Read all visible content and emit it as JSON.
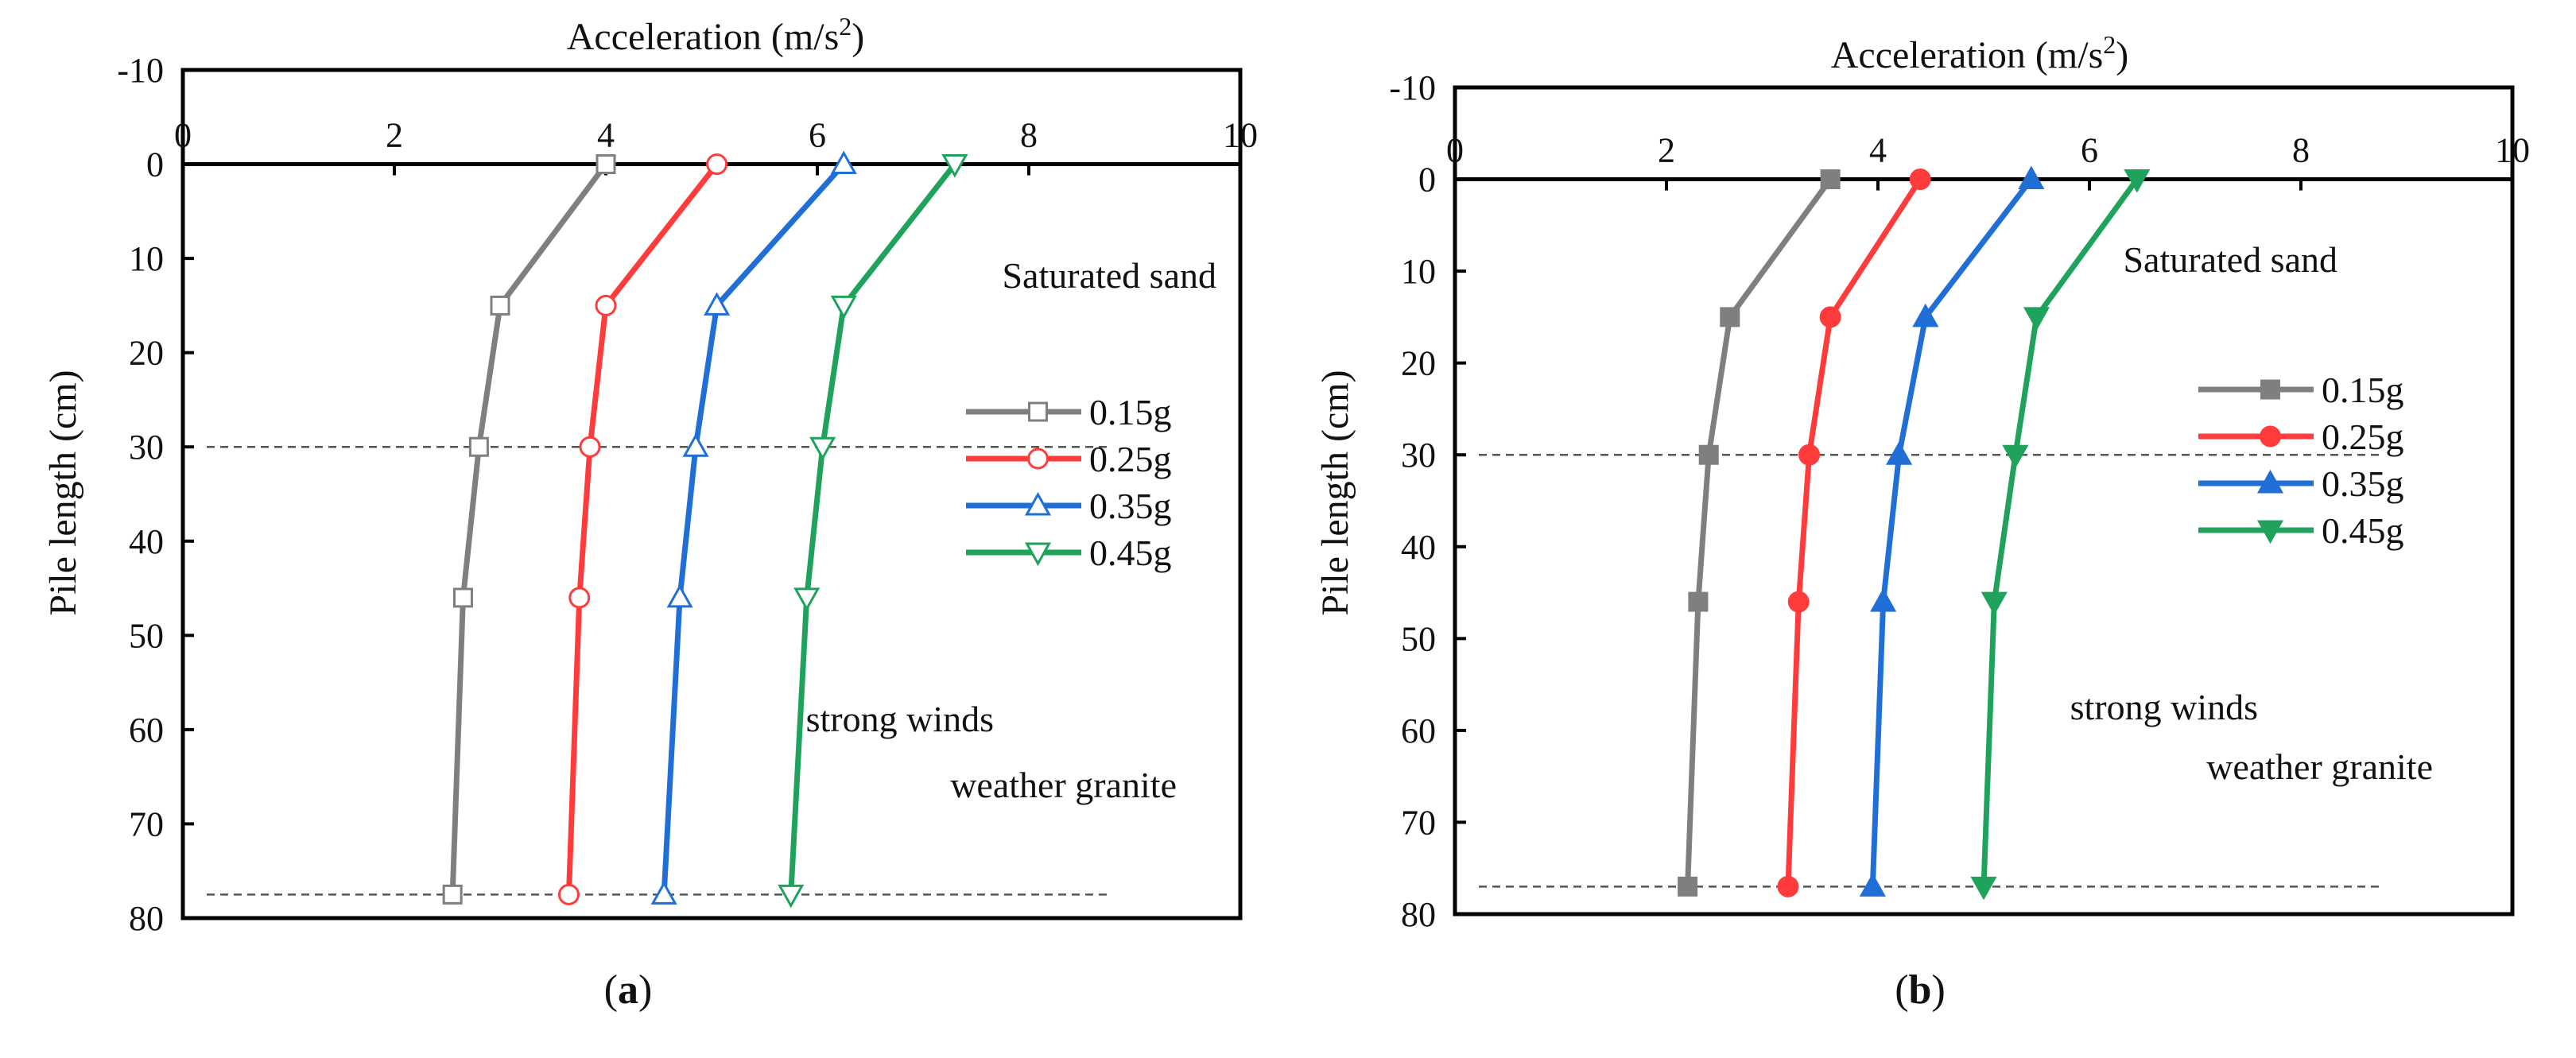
{
  "chart_data": [
    {
      "type": "line",
      "panel": "(a)",
      "xlabel_prefix": "Acceleration (m/s",
      "xlabel_sup": "2",
      "xlabel_suffix": ")",
      "ylabel": "Pile length (cm)",
      "xlim": [
        0,
        10
      ],
      "ylim": [
        -10,
        80
      ],
      "xticks": [
        0,
        2,
        4,
        6,
        8,
        10
      ],
      "yticks": [
        -10,
        0,
        10,
        20,
        30,
        40,
        50,
        60,
        70,
        80
      ],
      "xtick_labels": [
        "0",
        "2",
        "4",
        "6",
        "8",
        "10"
      ],
      "ytick_labels": [
        "-10",
        "0",
        "10",
        "20",
        "30",
        "40",
        "50",
        "60",
        "70",
        "80"
      ],
      "reference_lines": [
        30,
        77.5
      ],
      "annotations": {
        "top_layer": "Saturated sand",
        "bottom_layer_1": "strong winds",
        "bottom_layer_2": "weather granite"
      },
      "marker_fill": "hollow",
      "y": [
        0,
        15,
        30,
        46,
        77.5
      ],
      "series": [
        {
          "name": "0.15g",
          "color": "#7f7f7f",
          "marker": "square",
          "x": [
            4.0,
            3.0,
            2.8,
            2.65,
            2.55
          ]
        },
        {
          "name": "0.25g",
          "color": "#ff3b3b",
          "marker": "circle",
          "x": [
            5.05,
            4.0,
            3.85,
            3.75,
            3.65
          ]
        },
        {
          "name": "0.35g",
          "color": "#1f6fd6",
          "marker": "triangle-up",
          "x": [
            6.25,
            5.05,
            4.85,
            4.7,
            4.55
          ]
        },
        {
          "name": "0.45g",
          "color": "#1fa35c",
          "marker": "triangle-down",
          "x": [
            7.3,
            6.25,
            6.05,
            5.9,
            5.75
          ]
        }
      ]
    },
    {
      "type": "line",
      "panel": "(b)",
      "xlabel_prefix": "Acceleration (m/s",
      "xlabel_sup": "2",
      "xlabel_suffix": ")",
      "ylabel": "Pile length (cm)",
      "xlim": [
        0,
        10
      ],
      "ylim": [
        -10,
        80
      ],
      "xticks": [
        0,
        2,
        4,
        6,
        8,
        10
      ],
      "yticks": [
        -10,
        0,
        10,
        20,
        30,
        40,
        50,
        60,
        70,
        80
      ],
      "xtick_labels": [
        "0",
        "2",
        "4",
        "6",
        "8",
        "10"
      ],
      "ytick_labels": [
        "-10",
        "0",
        "10",
        "20",
        "30",
        "40",
        "50",
        "60",
        "70",
        "80"
      ],
      "reference_lines": [
        30,
        77
      ],
      "annotations": {
        "top_layer": "Saturated sand",
        "bottom_layer_1": "strong winds",
        "bottom_layer_2": "weather granite"
      },
      "marker_fill": "filled",
      "y": [
        0,
        15,
        30,
        46,
        77
      ],
      "series": [
        {
          "name": "0.15g",
          "color": "#7f7f7f",
          "marker": "square",
          "x": [
            3.55,
            2.6,
            2.4,
            2.3,
            2.2
          ]
        },
        {
          "name": "0.25g",
          "color": "#ff3b3b",
          "marker": "circle",
          "x": [
            4.4,
            3.55,
            3.35,
            3.25,
            3.15
          ]
        },
        {
          "name": "0.35g",
          "color": "#1f6fd6",
          "marker": "triangle-up",
          "x": [
            5.45,
            4.45,
            4.2,
            4.05,
            3.95
          ]
        },
        {
          "name": "0.45g",
          "color": "#1fa35c",
          "marker": "triangle-down",
          "x": [
            6.45,
            5.5,
            5.3,
            5.1,
            5.0
          ]
        }
      ]
    }
  ]
}
